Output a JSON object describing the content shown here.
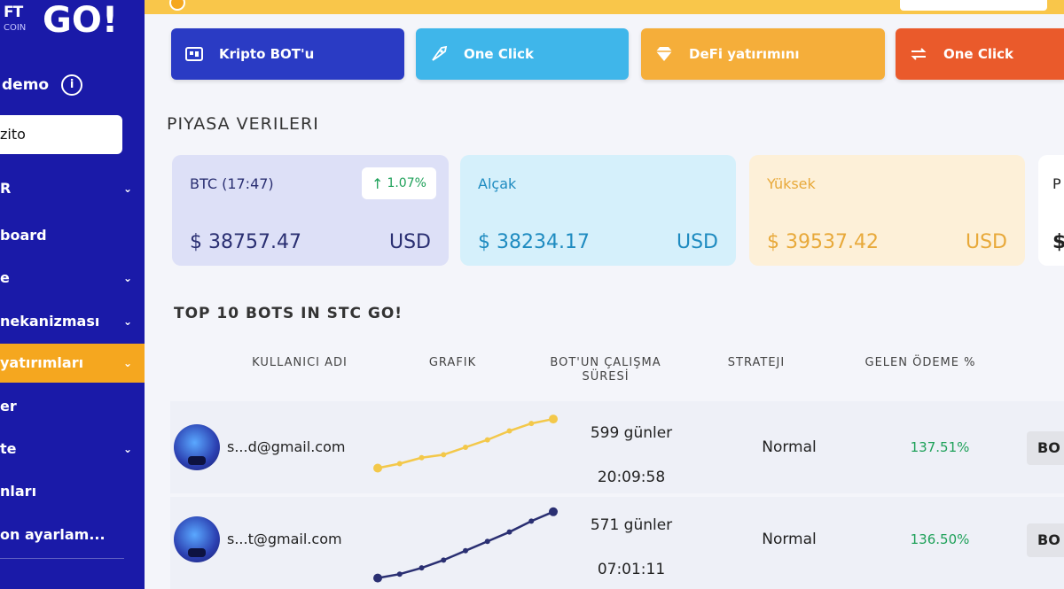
{
  "sidebar": {
    "logo_top": "FT",
    "logo_sub": "COIN",
    "logo_go": "GO!",
    "user": "demo",
    "user_box": "zito",
    "items": [
      {
        "label": "R",
        "chev": "⌄"
      },
      {
        "label": "board",
        "chev": ""
      },
      {
        "label": "e",
        "chev": "⌄"
      },
      {
        "label": "nekanizması",
        "chev": "⌄"
      },
      {
        "label": "yatırımları",
        "chev": "⌄"
      },
      {
        "label": "er",
        "chev": ""
      },
      {
        "label": "te",
        "chev": "⌄"
      },
      {
        "label": "nları",
        "chev": ""
      },
      {
        "label": "on ayarlam...",
        "chev": ""
      }
    ]
  },
  "actions": [
    {
      "label": "Kripto BOT'u",
      "color": "#2a3bc4",
      "icon": "bot-icon"
    },
    {
      "label": "One Click",
      "color": "#3fb6ea",
      "icon": "rocket-icon"
    },
    {
      "label": "DeFi yatırımını",
      "color": "#f5ae3a",
      "icon": "diamond-icon"
    },
    {
      "label": "One Click",
      "color": "#ea5a2b",
      "icon": "swap-icon"
    }
  ],
  "market": {
    "title": "PIYASA VERILERI",
    "cards": [
      {
        "label": "BTC (17:47)",
        "price": "$ 38757.47",
        "currency": "USD",
        "change": "1.07%",
        "bg": "#dde0f7",
        "fg": "#2a2f72"
      },
      {
        "label": "Alçak",
        "price": "$ 38234.17",
        "currency": "USD",
        "bg": "#d5f0fb",
        "fg": "#1e8bc0"
      },
      {
        "label": "Yüksek",
        "price": "$ 39537.42",
        "currency": "USD",
        "bg": "#fdf0d8",
        "fg": "#e8a93a"
      },
      {
        "label": "P",
        "price": "$",
        "currency": "",
        "bg": "#ffffff",
        "fg": "#222222"
      }
    ]
  },
  "bots": {
    "title": "TOP 10 BOTS IN STC GO!",
    "headers": [
      "KULLANICI ADI",
      "GRAFIK",
      "BOT'UN ÇALIŞMA SÜRESİ",
      "STRATEJI",
      "GELEN ÖDEME %"
    ],
    "rows": [
      {
        "email": "s...d@gmail.com",
        "days": "599 günler",
        "time": "20:09:58",
        "strategy": "Normal",
        "payment": "137.51%",
        "action": "BO",
        "spark": [
          22,
          28,
          36,
          40,
          50,
          60,
          72,
          82,
          88
        ],
        "color": "#f3c84a"
      },
      {
        "email": "s...t@gmail.com",
        "days": "571 günler",
        "time": "07:01:11",
        "strategy": "Normal",
        "payment": "136.50%",
        "action": "BO",
        "spark": [
          5,
          10,
          18,
          28,
          40,
          52,
          64,
          78,
          90
        ],
        "color": "#2a2f72"
      }
    ]
  }
}
